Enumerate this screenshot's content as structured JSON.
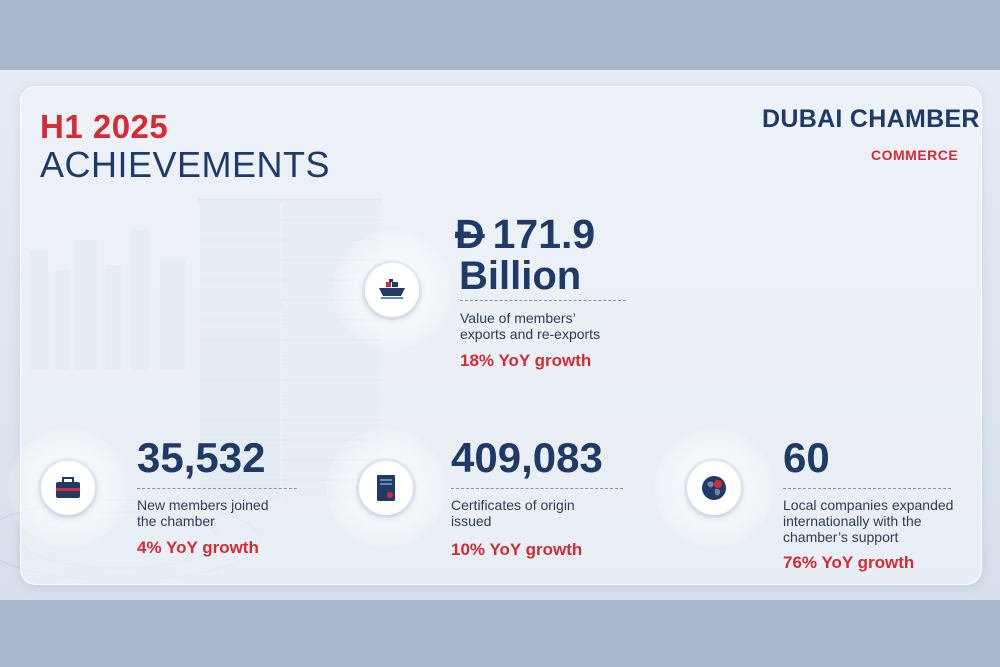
{
  "heading": {
    "line1": "H1 2025",
    "line2": "ACHIEVEMENTS"
  },
  "brand": {
    "name": "DUBAI CHAMBER",
    "division": "COMMERCE"
  },
  "stats": [
    {
      "currency": "Đ",
      "value": "171.9",
      "unit": "Billion",
      "description_line1": "Value of members’",
      "description_line2": "exports and re-exports",
      "growth": "18% YoY growth",
      "icon": "cargo-ship-icon"
    },
    {
      "value": "35,532",
      "description_line1": "New members joined",
      "description_line2": "the chamber",
      "growth": "4% YoY growth",
      "icon": "briefcase-icon"
    },
    {
      "value": "409,083",
      "description_line1": "Certificates of origin",
      "description_line2": "issued",
      "growth": "10% YoY growth",
      "icon": "certificate-book-icon"
    },
    {
      "value": "60",
      "description_line1": "Local companies expanded",
      "description_line2": "internationally with the",
      "description_line3": "chamber’s support",
      "growth": "76% YoY growth",
      "icon": "globe-icon"
    }
  ],
  "colors": {
    "navy": "#1f3a66",
    "red": "#d52b35",
    "page_bg": "#aab6cc"
  }
}
